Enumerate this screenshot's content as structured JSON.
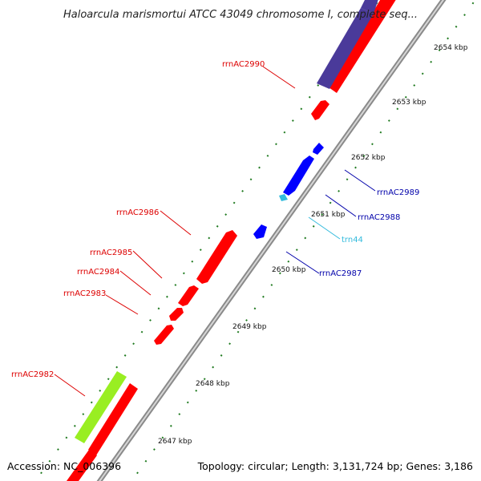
{
  "title": "Haloarcula marismortui ATCC 43049 chromosome I, complete seq...",
  "accession": "Accession: NC_006396",
  "topology": "Topology: circular; Length: 3,131,724 bp; Genes: 3,186",
  "colors": {
    "backbone": "#8a8a8a",
    "forward_cds": "#ff0000",
    "reverse_cds": "#0000ff",
    "trna": "#33bbdd",
    "rrna": "#99ee22",
    "other": "#4a3a9a",
    "tick": "#2a8a2a",
    "fwd_label": "#dd0000",
    "rev_label": "#0000aa",
    "trna_label": "#33bbdd"
  },
  "scale_ticks": [
    "2647 kbp",
    "2648 kbp",
    "2649 kbp",
    "2650 kbp",
    "2651 kbp",
    "2652 kbp",
    "2653 kbp",
    "2654 kbp"
  ],
  "features": [
    {
      "name": "rrnAC2990",
      "strand": "forward"
    },
    {
      "name": "rrnAC2986",
      "strand": "forward"
    },
    {
      "name": "rrnAC2985",
      "strand": "forward"
    },
    {
      "name": "rrnAC2984",
      "strand": "forward"
    },
    {
      "name": "rrnAC2983",
      "strand": "forward"
    },
    {
      "name": "rrnAC2982",
      "strand": "forward"
    },
    {
      "name": "rrnAC2989",
      "strand": "reverse"
    },
    {
      "name": "rrnAC2988",
      "strand": "reverse"
    },
    {
      "name": "trn44",
      "strand": "reverse"
    },
    {
      "name": "rrnAC2987",
      "strand": "reverse"
    }
  ]
}
